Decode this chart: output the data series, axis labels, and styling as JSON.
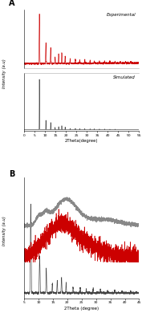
{
  "panel_A_label": "A",
  "panel_B_label": "B",
  "exp_label": "Experimental",
  "sim_label": "Simulated",
  "xlabel_A": "2Theta(degree)",
  "xlabel_B": "2Theta (degree)",
  "ylabel_A": "Intensity (a.u)",
  "ylabel_B": "Intensity (a.u)",
  "xlim_A": [
    0,
    55
  ],
  "xlim_B": [
    5,
    45
  ],
  "xticks_A": [
    0,
    5,
    10,
    15,
    20,
    25,
    30,
    35,
    40,
    45,
    50,
    55
  ],
  "xticks_B": [
    5,
    10,
    15,
    20,
    25,
    30,
    35,
    40,
    45
  ],
  "exp_color": "#cc0000",
  "sim_color": "#444444",
  "gray_color": "#888888",
  "figure_bg": "#ffffff"
}
